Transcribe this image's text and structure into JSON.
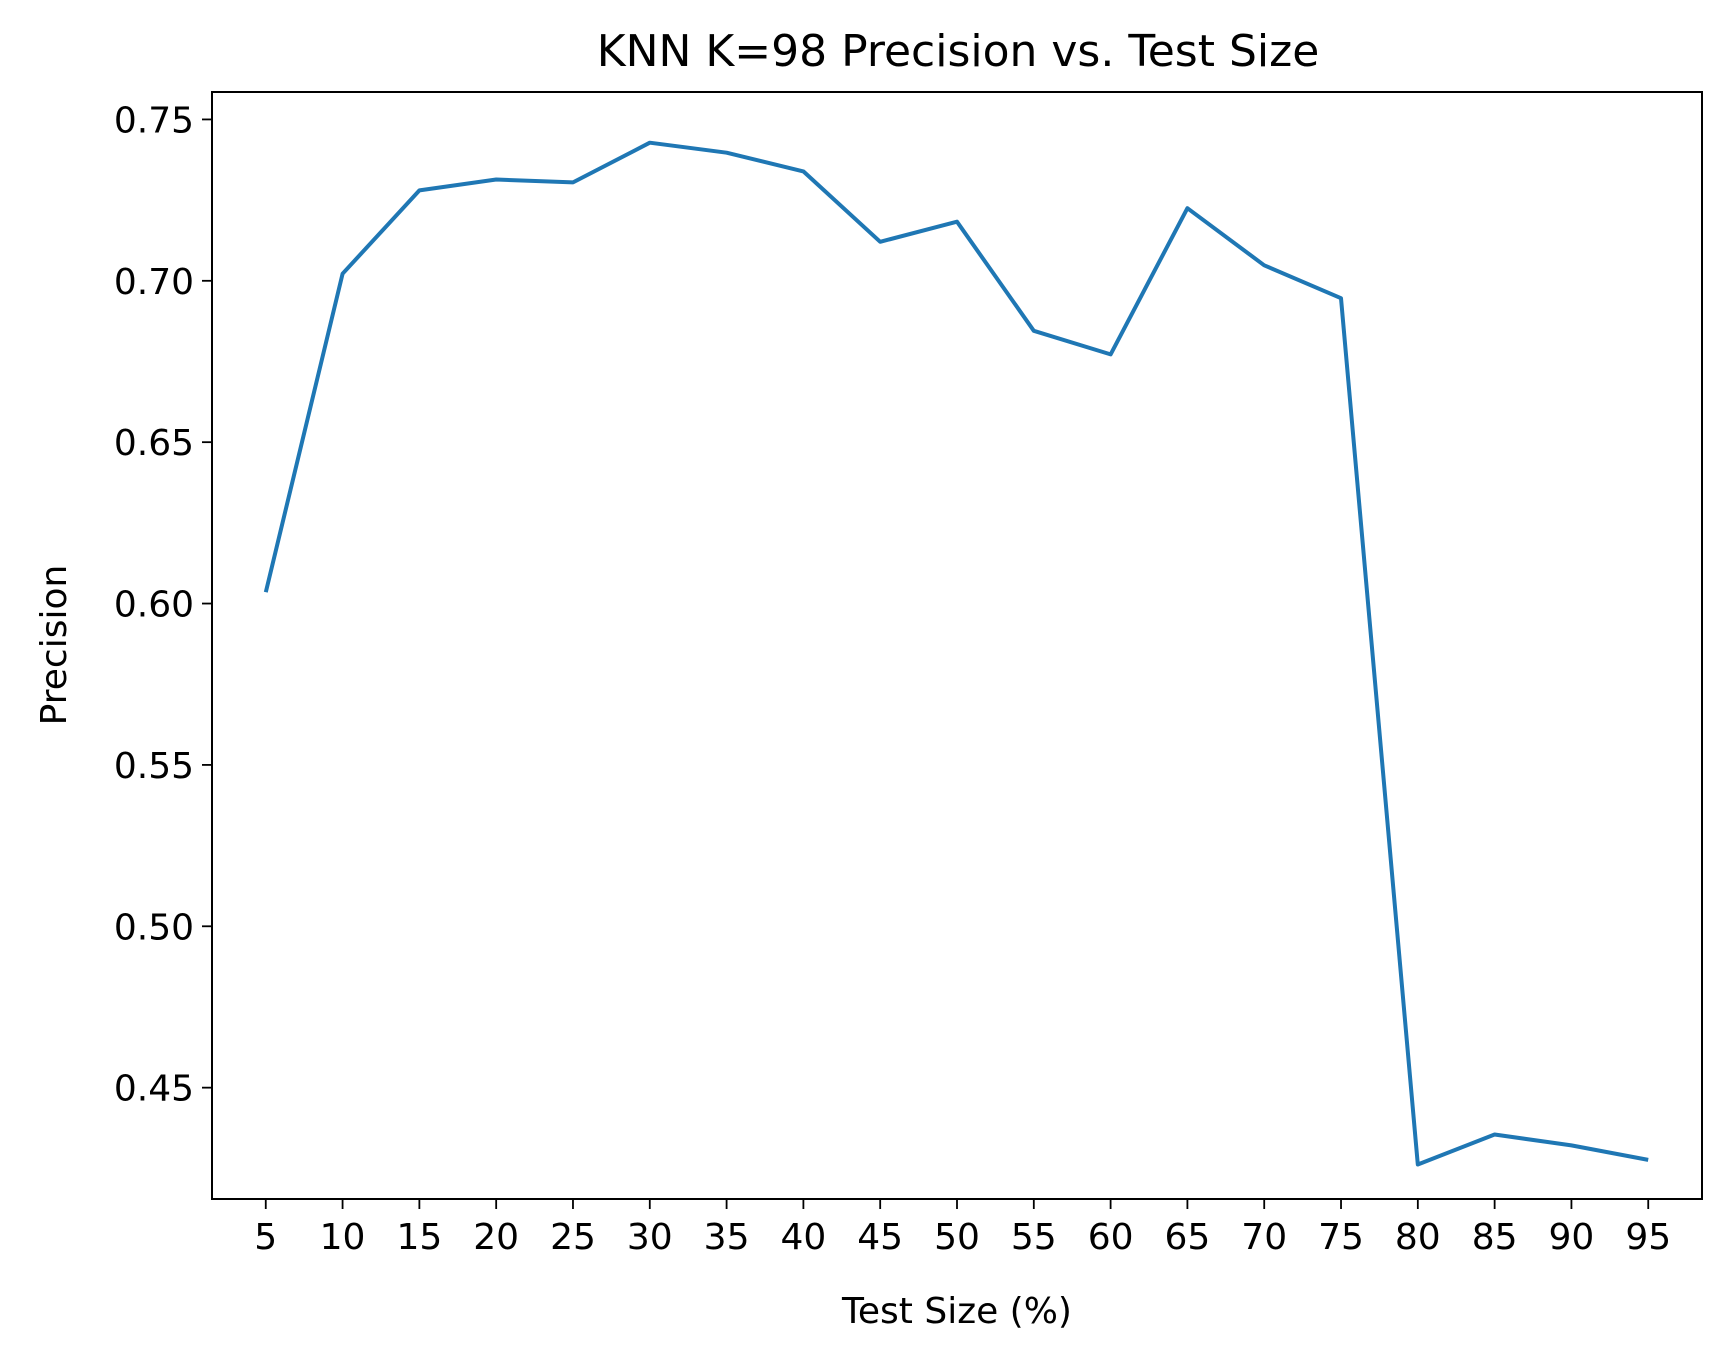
{
  "chart_data": {
    "type": "line",
    "title": "KNN K=98  Precision vs. Test Size",
    "xlabel": "Test Size (%)",
    "ylabel": "Precision",
    "categories": [
      "5",
      "10",
      "15",
      "20",
      "25",
      "30",
      "35",
      "40",
      "45",
      "50",
      "55",
      "60",
      "65",
      "70",
      "75",
      "80",
      "85",
      "90",
      "95"
    ],
    "yticks": [
      "0.45",
      "0.50",
      "0.55",
      "0.60",
      "0.65",
      "0.70",
      "0.75"
    ],
    "ylim": [
      0.4155,
      0.7585
    ],
    "series": [
      {
        "name": "Precision",
        "color": "#1f77b4",
        "x": [
          5,
          10,
          15,
          20,
          25,
          30,
          35,
          40,
          45,
          50,
          55,
          60,
          65,
          70,
          75,
          80,
          85,
          90,
          95
        ],
        "values": [
          0.6035,
          0.7022,
          0.728,
          0.7314,
          0.7305,
          0.7428,
          0.7397,
          0.7339,
          0.7121,
          0.7183,
          0.6845,
          0.6772,
          0.7225,
          0.7048,
          0.6946,
          0.4262,
          0.4355,
          0.4321,
          0.4276
        ]
      }
    ],
    "grid": false,
    "legend": "none"
  }
}
